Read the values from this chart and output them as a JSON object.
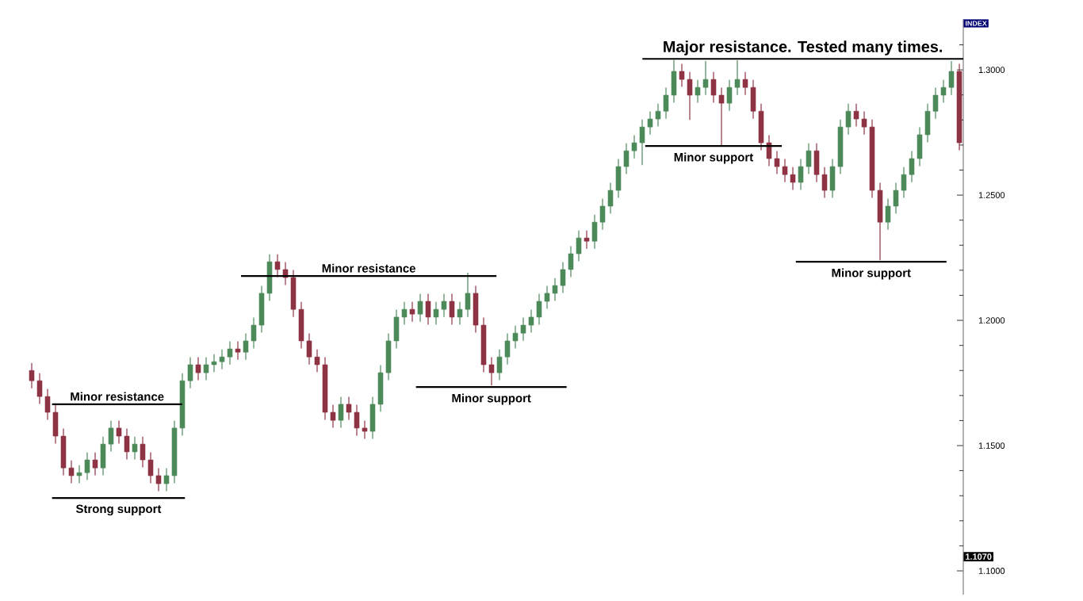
{
  "chart_data": {
    "type": "candlestick",
    "ylabel": "INDEX",
    "tick_labels": "y",
    "grid": false,
    "categories": [
      null,
      null,
      null,
      null,
      null,
      null,
      null,
      null,
      null,
      null,
      null,
      null,
      null,
      null,
      null,
      null,
      null,
      null,
      null,
      null,
      null,
      null,
      null,
      null,
      null,
      null,
      null,
      null,
      null,
      null,
      null,
      null,
      null,
      null,
      null,
      null,
      null,
      null,
      null,
      null,
      null,
      null,
      null,
      null,
      null,
      null,
      null,
      null,
      null,
      null,
      null,
      null,
      null,
      null,
      null,
      null,
      null,
      null,
      null,
      null,
      null,
      null,
      null,
      null,
      null,
      null,
      null,
      null,
      null,
      null,
      null,
      null,
      null,
      null,
      null,
      null,
      null,
      null,
      null,
      null,
      null,
      null,
      null,
      null,
      null,
      null,
      null,
      null,
      null,
      null,
      null,
      null,
      null,
      null,
      null,
      null,
      null,
      null,
      null,
      null,
      null,
      null,
      null,
      null,
      null,
      null,
      null,
      null,
      null,
      null,
      null,
      null,
      null,
      null,
      null,
      null,
      null,
      null
    ],
    "ohlc": [
      [
        1.18,
        1.183,
        1.1729,
        1.1759
      ],
      [
        1.1759,
        1.1789,
        1.1666,
        1.1696
      ],
      [
        1.1696,
        1.1726,
        1.1603,
        1.1633
      ],
      [
        1.1633,
        1.1663,
        1.1508,
        1.1538
      ],
      [
        1.1538,
        1.1568,
        1.1381,
        1.1411
      ],
      [
        1.1411,
        1.1441,
        1.135,
        1.138
      ],
      [
        1.138,
        1.1422,
        1.135,
        1.1392
      ],
      [
        1.1392,
        1.1473,
        1.1362,
        1.1443
      ],
      [
        1.1443,
        1.1473,
        1.1381,
        1.1411
      ],
      [
        1.1411,
        1.1536,
        1.1381,
        1.1506
      ],
      [
        1.1506,
        1.16,
        1.1476,
        1.157
      ],
      [
        1.157,
        1.16,
        1.1508,
        1.1538
      ],
      [
        1.1538,
        1.1568,
        1.1445,
        1.1475
      ],
      [
        1.1475,
        1.1536,
        1.1445,
        1.1506
      ],
      [
        1.1506,
        1.1536,
        1.1413,
        1.1443
      ],
      [
        1.1443,
        1.1473,
        1.135,
        1.138
      ],
      [
        1.138,
        1.141,
        1.1318,
        1.1348
      ],
      [
        1.1348,
        1.141,
        1.1318,
        1.138
      ],
      [
        1.138,
        1.16,
        1.135,
        1.157
      ],
      [
        1.157,
        1.1789,
        1.154,
        1.1759
      ],
      [
        1.1759,
        1.1853,
        1.1729,
        1.1823
      ],
      [
        1.1823,
        1.1853,
        1.1761,
        1.1791
      ],
      [
        1.1791,
        1.1853,
        1.1761,
        1.1823
      ],
      [
        1.1823,
        1.1865,
        1.1793,
        1.1835
      ],
      [
        1.1835,
        1.1884,
        1.1805,
        1.1854
      ],
      [
        1.1854,
        1.1916,
        1.1824,
        1.1886
      ],
      [
        1.1886,
        1.1916,
        1.1843,
        1.1873
      ],
      [
        1.1873,
        1.1948,
        1.1843,
        1.1918
      ],
      [
        1.1918,
        1.2011,
        1.1888,
        1.1981
      ],
      [
        1.1981,
        1.2138,
        1.1951,
        1.2108
      ],
      [
        1.2108,
        1.2264,
        1.2078,
        1.2234
      ],
      [
        1.2234,
        1.2264,
        1.2173,
        1.2203
      ],
      [
        1.2203,
        1.2233,
        1.2141,
        1.2171
      ],
      [
        1.2171,
        1.2201,
        1.2014,
        1.2044
      ],
      [
        1.2044,
        1.2074,
        1.1888,
        1.1918
      ],
      [
        1.1918,
        1.1948,
        1.1824,
        1.1854
      ],
      [
        1.1854,
        1.1884,
        1.1793,
        1.1823
      ],
      [
        1.1823,
        1.1853,
        1.1603,
        1.1633
      ],
      [
        1.1633,
        1.1663,
        1.1571,
        1.1601
      ],
      [
        1.1601,
        1.1695,
        1.1571,
        1.1665
      ],
      [
        1.1665,
        1.1695,
        1.1603,
        1.1633
      ],
      [
        1.1633,
        1.1663,
        1.154,
        1.157
      ],
      [
        1.157,
        1.16,
        1.1527,
        1.1557
      ],
      [
        1.1557,
        1.1695,
        1.1527,
        1.1665
      ],
      [
        1.1665,
        1.1821,
        1.1635,
        1.1791
      ],
      [
        1.1791,
        1.1948,
        1.1761,
        1.1918
      ],
      [
        1.1918,
        1.2043,
        1.1888,
        1.2013
      ],
      [
        1.2013,
        1.2074,
        1.1983,
        1.2044
      ],
      [
        1.2044,
        1.2074,
        1.1995,
        1.2025
      ],
      [
        1.2025,
        1.2106,
        1.1995,
        1.2076
      ],
      [
        1.2076,
        1.2106,
        1.1983,
        1.2013
      ],
      [
        1.2013,
        1.2074,
        1.1983,
        1.2044
      ],
      [
        1.2044,
        1.2106,
        1.2014,
        1.2076
      ],
      [
        1.2076,
        1.2106,
        1.1983,
        1.2013
      ],
      [
        1.2013,
        1.2074,
        1.1983,
        1.2044
      ],
      [
        1.2044,
        1.219,
        1.2014,
        1.2108
      ],
      [
        1.2108,
        1.2138,
        1.1951,
        1.1981
      ],
      [
        1.1981,
        1.2011,
        1.1793,
        1.1823
      ],
      [
        1.1823,
        1.1853,
        1.174,
        1.1791
      ],
      [
        1.1791,
        1.1884,
        1.1761,
        1.1854
      ],
      [
        1.1854,
        1.1948,
        1.1824,
        1.1918
      ],
      [
        1.1918,
        1.1979,
        1.1888,
        1.1949
      ],
      [
        1.1949,
        1.2011,
        1.1919,
        1.1981
      ],
      [
        1.1981,
        1.2043,
        1.1951,
        1.2013
      ],
      [
        1.2013,
        1.2106,
        1.1983,
        1.2076
      ],
      [
        1.2076,
        1.2138,
        1.2046,
        1.2108
      ],
      [
        1.2108,
        1.2169,
        1.2078,
        1.2139
      ],
      [
        1.2139,
        1.2233,
        1.2109,
        1.2203
      ],
      [
        1.2203,
        1.2296,
        1.2173,
        1.2266
      ],
      [
        1.2266,
        1.2359,
        1.2236,
        1.2329
      ],
      [
        1.2329,
        1.2359,
        1.2286,
        1.2316
      ],
      [
        1.2316,
        1.2422,
        1.2286,
        1.2392
      ],
      [
        1.2392,
        1.2486,
        1.2362,
        1.2456
      ],
      [
        1.2456,
        1.2549,
        1.2426,
        1.2519
      ],
      [
        1.2519,
        1.2644,
        1.2489,
        1.2614
      ],
      [
        1.2614,
        1.2707,
        1.2584,
        1.2677
      ],
      [
        1.2677,
        1.2739,
        1.2647,
        1.2709
      ],
      [
        1.2709,
        1.2802,
        1.262,
        1.2772
      ],
      [
        1.2772,
        1.2834,
        1.2742,
        1.2804
      ],
      [
        1.2804,
        1.2865,
        1.2774,
        1.2835
      ],
      [
        1.2835,
        1.2929,
        1.2805,
        1.2899
      ],
      [
        1.2899,
        1.304,
        1.2869,
        1.2994
      ],
      [
        1.2994,
        1.3024,
        1.2932,
        1.2962
      ],
      [
        1.2962,
        1.2992,
        1.28,
        1.2899
      ],
      [
        1.2899,
        1.296,
        1.2869,
        1.293
      ],
      [
        1.293,
        1.3035,
        1.29,
        1.2962
      ],
      [
        1.2962,
        1.2992,
        1.2869,
        1.2899
      ],
      [
        1.2899,
        1.2929,
        1.27,
        1.2867
      ],
      [
        1.2867,
        1.296,
        1.2837,
        1.293
      ],
      [
        1.293,
        1.3038,
        1.29,
        1.2962
      ],
      [
        1.2962,
        1.2992,
        1.29,
        1.293
      ],
      [
        1.293,
        1.296,
        1.2805,
        1.2835
      ],
      [
        1.2835,
        1.2865,
        1.2679,
        1.2709
      ],
      [
        1.2709,
        1.2739,
        1.2616,
        1.2646
      ],
      [
        1.2646,
        1.2676,
        1.2584,
        1.2614
      ],
      [
        1.2614,
        1.2644,
        1.2552,
        1.2582
      ],
      [
        1.2582,
        1.2612,
        1.2521,
        1.2551
      ],
      [
        1.2551,
        1.2644,
        1.2521,
        1.2614
      ],
      [
        1.2614,
        1.2707,
        1.2584,
        1.2677
      ],
      [
        1.2677,
        1.2707,
        1.2552,
        1.2582
      ],
      [
        1.2582,
        1.2612,
        1.2489,
        1.2519
      ],
      [
        1.2519,
        1.2644,
        1.2489,
        1.2614
      ],
      [
        1.2614,
        1.2802,
        1.2584,
        1.2772
      ],
      [
        1.2772,
        1.2865,
        1.2742,
        1.2835
      ],
      [
        1.2835,
        1.2865,
        1.2774,
        1.2804
      ],
      [
        1.2804,
        1.2834,
        1.2742,
        1.2772
      ],
      [
        1.2772,
        1.2802,
        1.2489,
        1.2519
      ],
      [
        1.2519,
        1.2549,
        1.224,
        1.2392
      ],
      [
        1.2392,
        1.2486,
        1.2362,
        1.2456
      ],
      [
        1.2456,
        1.2549,
        1.2426,
        1.2519
      ],
      [
        1.2519,
        1.2612,
        1.2489,
        1.2582
      ],
      [
        1.2582,
        1.2676,
        1.2552,
        1.2646
      ],
      [
        1.2646,
        1.2771,
        1.2616,
        1.2741
      ],
      [
        1.2741,
        1.2865,
        1.2711,
        1.2835
      ],
      [
        1.2835,
        1.2929,
        1.2805,
        1.2899
      ],
      [
        1.2899,
        1.296,
        1.2869,
        1.293
      ],
      [
        1.293,
        1.3035,
        1.29,
        1.2994
      ],
      [
        1.2994,
        1.3024,
        1.2679,
        1.2709
      ]
    ],
    "ylim": [
      1.0905,
      1.3203
    ],
    "yticks": [
      {
        "value": 1.1,
        "label": "1.1000"
      },
      {
        "value": 1.11,
        "label": null
      },
      {
        "value": 1.12,
        "label": null
      },
      {
        "value": 1.13,
        "label": null
      },
      {
        "value": 1.14,
        "label": null
      },
      {
        "value": 1.15,
        "label": "1.1500"
      },
      {
        "value": 1.16,
        "label": null
      },
      {
        "value": 1.17,
        "label": null
      },
      {
        "value": 1.18,
        "label": null
      },
      {
        "value": 1.19,
        "label": null
      },
      {
        "value": 1.2,
        "label": "1.2000"
      },
      {
        "value": 1.21,
        "label": null
      },
      {
        "value": 1.22,
        "label": null
      },
      {
        "value": 1.23,
        "label": null
      },
      {
        "value": 1.24,
        "label": null
      },
      {
        "value": 1.25,
        "label": "1.2500"
      },
      {
        "value": 1.26,
        "label": null
      },
      {
        "value": 1.27,
        "label": null
      },
      {
        "value": 1.28,
        "label": null
      },
      {
        "value": 1.29,
        "label": null
      },
      {
        "value": 1.3,
        "label": "1.3000"
      },
      {
        "value": 1.31,
        "label": null
      }
    ],
    "annotations": [
      "1.1070"
    ],
    "ref_lines": [
      {
        "axis": "y",
        "value": 1.1665,
        "label": "Minor resistance",
        "color": "#000000"
      },
      {
        "axis": "y",
        "value": 1.1291,
        "label": "Strong support",
        "color": "#000000"
      },
      {
        "axis": "y",
        "value": 1.2177,
        "label": "Minor resistance",
        "color": "#000000"
      },
      {
        "axis": "y",
        "value": 1.1734,
        "label": "Minor support",
        "color": "#000000"
      },
      {
        "axis": "y",
        "value": 1.3044,
        "label": "Major resistance. Tested many times.",
        "color": "#000000"
      },
      {
        "axis": "y",
        "value": 1.2696,
        "label": "Minor support",
        "color": "#000000"
      },
      {
        "axis": "y",
        "value": 1.2234,
        "label": "Minor support",
        "color": "#000000"
      }
    ]
  }
}
